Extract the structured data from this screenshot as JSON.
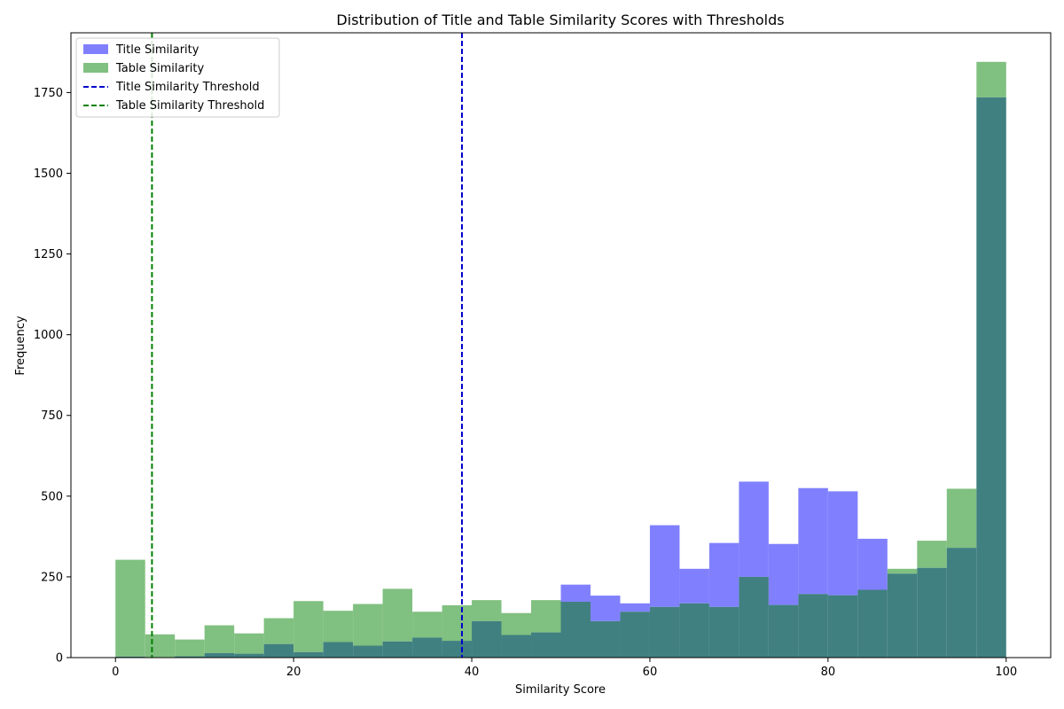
{
  "chart_data": {
    "type": "bar",
    "title": "Distribution of Title and Table Similarity Scores with Thresholds",
    "xlabel": "Similarity Score",
    "ylabel": "Frequency",
    "xlim": [
      -5,
      105
    ],
    "ylim": [
      0,
      1935
    ],
    "xticks": [
      0,
      20,
      40,
      60,
      80,
      100
    ],
    "yticks": [
      0,
      250,
      500,
      750,
      1000,
      1250,
      1500,
      1750
    ],
    "bin_width": 3.3333,
    "bin_count": 30,
    "legend_position": "top-left",
    "series": [
      {
        "name": "Title Similarity",
        "color": "#8080ff",
        "values": [
          3,
          0,
          4,
          14,
          12,
          42,
          17,
          48,
          37,
          50,
          62,
          52,
          113,
          70,
          78,
          226,
          192,
          168,
          410,
          275,
          355,
          545,
          352,
          525,
          515,
          368,
          260,
          278,
          340,
          1735
        ]
      },
      {
        "name": "Table Similarity",
        "color": "#80c080",
        "values": [
          303,
          72,
          56,
          100,
          75,
          122,
          175,
          145,
          166,
          213,
          142,
          162,
          178,
          138,
          178,
          173,
          113,
          142,
          157,
          168,
          157,
          250,
          163,
          197,
          193,
          210,
          275,
          362,
          523,
          1845
        ]
      }
    ],
    "overlap_color": "#408080",
    "thresholds": [
      {
        "name": "Title Similarity Threshold",
        "x": 38.9,
        "color": "#0000cc"
      },
      {
        "name": "Table Similarity Threshold",
        "x": 4.1,
        "color": "#008000"
      }
    ]
  }
}
